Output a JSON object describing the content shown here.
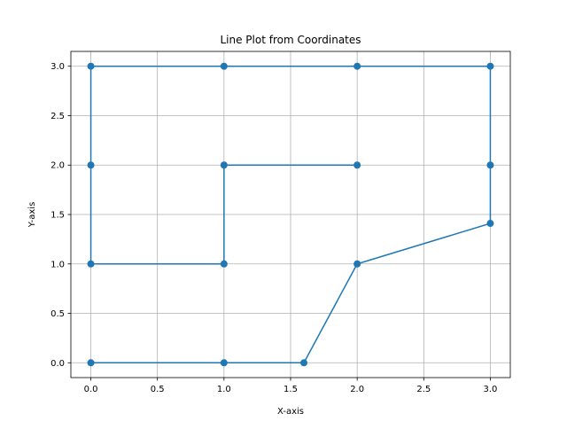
{
  "chart_data": {
    "type": "line",
    "title": "Line Plot from Coordinates",
    "xlabel": "X-axis",
    "ylabel": "Y-axis",
    "xlim": [
      -0.15,
      3.15
    ],
    "ylim": [
      -0.15,
      3.15
    ],
    "xticks": [
      0.0,
      0.5,
      1.0,
      1.5,
      2.0,
      2.5,
      3.0
    ],
    "yticks": [
      0.0,
      0.5,
      1.0,
      1.5,
      2.0,
      2.5,
      3.0
    ],
    "xtick_labels": [
      "0.0",
      "0.5",
      "1.0",
      "1.5",
      "2.0",
      "2.5",
      "3.0"
    ],
    "ytick_labels": [
      "0.0",
      "0.5",
      "1.0",
      "1.5",
      "2.0",
      "2.5",
      "3.0"
    ],
    "grid": true,
    "series": [
      {
        "color": "#1f77b4",
        "marker": "circle",
        "points": [
          {
            "x": 0.0,
            "y": 0.0
          },
          {
            "x": 1.0,
            "y": 0.0
          },
          {
            "x": 1.6,
            "y": 0.0
          },
          {
            "x": 2.0,
            "y": 1.0
          },
          {
            "x": 3.0,
            "y": 1.41
          },
          {
            "x": 3.0,
            "y": 2.0
          },
          {
            "x": 3.0,
            "y": 3.0
          },
          {
            "x": 2.0,
            "y": 3.0
          },
          {
            "x": 1.0,
            "y": 3.0
          },
          {
            "x": 0.0,
            "y": 3.0
          },
          {
            "x": 0.0,
            "y": 2.0
          },
          {
            "x": 0.0,
            "y": 1.0
          },
          {
            "x": 1.0,
            "y": 1.0
          },
          {
            "x": 1.0,
            "y": 2.0
          },
          {
            "x": 2.0,
            "y": 2.0
          }
        ]
      }
    ]
  }
}
